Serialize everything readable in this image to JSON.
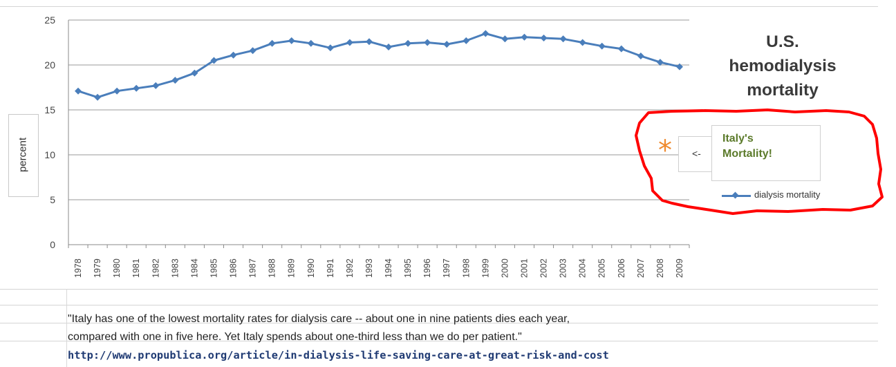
{
  "chart_data": {
    "type": "line",
    "title": "U.S. hemodialysis mortality",
    "title_lines": [
      "U.S.",
      "hemodialysis",
      "mortality"
    ],
    "ylabel": "percent",
    "xlabel": "",
    "ylim": [
      0,
      25
    ],
    "y_ticks": [
      0,
      5,
      10,
      15,
      20,
      25
    ],
    "grid": true,
    "legend_position": "right",
    "categories": [
      "1978",
      "1979",
      "1980",
      "1981",
      "1982",
      "1983",
      "1984",
      "1985",
      "1986",
      "1987",
      "1988",
      "1989",
      "1990",
      "1991",
      "1992",
      "1993",
      "1994",
      "1995",
      "1996",
      "1997",
      "1998",
      "1999",
      "2000",
      "2001",
      "2002",
      "2003",
      "2004",
      "2005",
      "2006",
      "2007",
      "2008",
      "2009"
    ],
    "series": [
      {
        "name": "dialysis mortality",
        "color": "#4a7ebb",
        "values": [
          17.1,
          16.4,
          17.1,
          17.4,
          17.7,
          18.3,
          19.1,
          20.5,
          21.1,
          21.6,
          22.4,
          22.7,
          22.4,
          21.9,
          22.5,
          22.6,
          22.0,
          22.4,
          22.5,
          22.3,
          22.7,
          23.5,
          22.9,
          23.1,
          23.0,
          22.9,
          22.5,
          22.1,
          21.8,
          21.0,
          20.3,
          19.8
        ]
      }
    ],
    "annotations": [
      {
        "text_lines": [
          "Italy's",
          "Mortality!"
        ],
        "arrow": "<-",
        "color": "#5b7a2a"
      }
    ]
  },
  "legend": {
    "label": "dialysis mortality"
  },
  "annotation": {
    "arrow": "<-",
    "line1": "Italy's",
    "line2": "Mortality!",
    "star": "*"
  },
  "quote": {
    "line1": "\"Italy has one of the lowest mortality rates for dialysis care -- about one in nine patients dies each year,",
    "line2": "compared with one in five here. Yet Italy spends about one-third less than we do per patient.\""
  },
  "link": {
    "text": "http://www.propublica.org/article/in-dialysis-life-saving-care-at-great-risk-and-cost"
  },
  "colors": {
    "series": "#4a7ebb",
    "highlight": "#ff0000",
    "star": "#ef8a2e",
    "annotation": "#5b7a2a",
    "link": "#1f3a73"
  }
}
